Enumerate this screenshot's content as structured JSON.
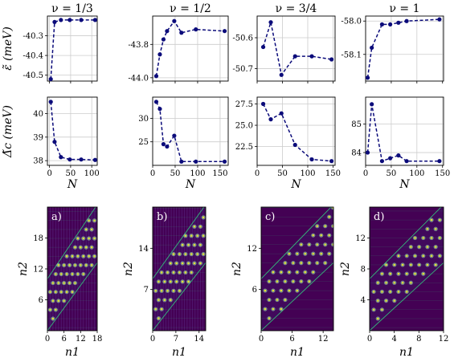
{
  "colors": {
    "line": "#0b0b7a",
    "grid": "#cccccc",
    "heat_bg": "#440154",
    "heat_line": "#35b779",
    "heat_spot": "#a0f0b0",
    "heat_spot_core": "#fde725"
  },
  "chart_data": [
    {
      "type": "line",
      "title": "ν = 1/3",
      "ylabel": "ε̃ (meV)",
      "xlabel": "",
      "x": [
        3,
        12,
        27,
        48,
        75,
        108
      ],
      "y": [
        -40.52,
        -40.23,
        -40.22,
        -40.22,
        -40.22,
        -40.22
      ],
      "xlim": [
        -5,
        113
      ],
      "ylim": [
        -40.53,
        -40.2
      ],
      "xticks": [
        0,
        50,
        100
      ],
      "xticklabels": [
        "",
        "",
        ""
      ],
      "yticks": [
        -40.5,
        -40.4,
        -40.3
      ],
      "yticklabels": [
        "-40.5",
        "-40.4",
        "-40.3"
      ],
      "grid": true
    },
    {
      "type": "line",
      "title": "ν = 1/2",
      "ylabel": "",
      "xlabel": "",
      "x": [
        8,
        16,
        24,
        32,
        48,
        64,
        96,
        160
      ],
      "y": [
        -43.99,
        -43.86,
        -43.77,
        -43.72,
        -43.66,
        -43.73,
        -43.71,
        -43.72
      ],
      "xlim": [
        0,
        168
      ],
      "ylim": [
        -44.02,
        -43.63
      ],
      "xticks": [
        0,
        50,
        100,
        150
      ],
      "xticklabels": [
        "",
        "",
        "",
        ""
      ],
      "yticks": [
        -44.0,
        -43.8
      ],
      "yticklabels": [
        "-44.0",
        "-43.8"
      ],
      "grid": true
    },
    {
      "type": "line",
      "title": "ν = 3/4",
      "ylabel": "",
      "xlabel": "",
      "x": [
        12,
        27,
        48,
        75,
        108,
        147
      ],
      "y": [
        -50.63,
        -50.55,
        -50.72,
        -50.66,
        -50.66,
        -50.67
      ],
      "xlim": [
        0,
        154
      ],
      "ylim": [
        -50.74,
        -50.53
      ],
      "xticks": [
        0,
        50,
        100,
        150
      ],
      "xticklabels": [
        "",
        "",
        "",
        ""
      ],
      "yticks": [
        -50.6,
        -50.7
      ],
      "yticklabels": [
        "-50.6",
        "-50.7"
      ],
      "grid": true
    },
    {
      "type": "line",
      "title": "ν = 1",
      "ylabel": "",
      "xlabel": "",
      "x": [
        4,
        12,
        32,
        48,
        64,
        80,
        144
      ],
      "y": [
        -58.17,
        -58.08,
        -58.01,
        -58.01,
        -58.005,
        -58.0,
        -57.995
      ],
      "xlim": [
        0,
        152
      ],
      "ylim": [
        -58.18,
        -57.985
      ],
      "xticks": [
        0,
        50,
        100,
        150
      ],
      "xticklabels": [
        "",
        "",
        "",
        ""
      ],
      "yticks": [
        -58.0,
        -58.1
      ],
      "yticklabels": [
        "-58.0",
        "-58.1"
      ],
      "grid": true
    },
    {
      "type": "line",
      "title": "",
      "ylabel": "Δ̃c (meV)",
      "xlabel": "N",
      "x": [
        3,
        12,
        27,
        48,
        75,
        108
      ],
      "y": [
        40.5,
        38.8,
        38.15,
        38.05,
        38.05,
        38.03
      ],
      "xlim": [
        -5,
        113
      ],
      "ylim": [
        37.8,
        40.7
      ],
      "xticks": [
        0,
        50,
        100
      ],
      "xticklabels": [
        "0",
        "50",
        "100"
      ],
      "yticks": [
        38,
        39,
        40
      ],
      "yticklabels": [
        "38",
        "39",
        "40"
      ],
      "grid": true
    },
    {
      "type": "line",
      "title": "",
      "ylabel": "",
      "xlabel": "N",
      "x": [
        8,
        16,
        24,
        32,
        48,
        64,
        96,
        160
      ],
      "y": [
        33.5,
        32.0,
        24.5,
        24.0,
        26.3,
        20.8,
        20.8,
        20.8
      ],
      "xlim": [
        0,
        168
      ],
      "ylim": [
        20.0,
        34.5
      ],
      "xticks": [
        0,
        50,
        100,
        150
      ],
      "xticklabels": [
        "0",
        "50",
        "100",
        "150"
      ],
      "yticks": [
        25,
        30
      ],
      "yticklabels": [
        "25",
        "30"
      ],
      "grid": true
    },
    {
      "type": "line",
      "title": "",
      "ylabel": "",
      "xlabel": "N",
      "x": [
        12,
        27,
        48,
        75,
        108,
        147
      ],
      "y": [
        27.5,
        25.7,
        26.4,
        22.7,
        21.0,
        20.8
      ],
      "xlim": [
        0,
        154
      ],
      "ylim": [
        20.3,
        28.3
      ],
      "xticks": [
        0,
        50,
        100,
        150
      ],
      "xticklabels": [
        "0",
        "50",
        "100",
        "150"
      ],
      "yticks": [
        22.5,
        25.0,
        27.5
      ],
      "yticklabels": [
        "22.5",
        "25.0",
        "27.5"
      ],
      "grid": true
    },
    {
      "type": "line",
      "title": "",
      "ylabel": "",
      "xlabel": "N",
      "x": [
        4,
        12,
        32,
        48,
        64,
        80,
        144
      ],
      "y": [
        84.0,
        85.7,
        83.7,
        83.8,
        83.9,
        83.7,
        83.7
      ],
      "xlim": [
        0,
        152
      ],
      "ylim": [
        83.55,
        85.95
      ],
      "xticks": [
        0,
        50,
        100,
        150
      ],
      "xticklabels": [
        "0",
        "50",
        "100",
        "150"
      ],
      "yticks": [
        84,
        85
      ],
      "yticklabels": [
        "84",
        "85"
      ],
      "grid": true
    },
    {
      "type": "heatmap",
      "panel_label": "a)",
      "xlabel": "n1",
      "ylabel": "n2",
      "xlim": [
        0,
        18
      ],
      "ylim": [
        0,
        24
      ],
      "xticks": [
        0,
        6,
        12,
        18
      ],
      "xticklabels": [
        "0",
        "6",
        "12",
        "18"
      ],
      "yticks": [
        6,
        12,
        18
      ],
      "yticklabels": [
        "6",
        "12",
        "18"
      ],
      "lattice": {
        "period": 2,
        "cols": 9,
        "rows": 9,
        "shear": 0.5,
        "origin_y": 0
      },
      "stripe_step": 1
    },
    {
      "type": "heatmap",
      "panel_label": "b)",
      "xlabel": "n1",
      "ylabel": "n2",
      "xlim": [
        0,
        16
      ],
      "ylim": [
        0,
        21
      ],
      "xticks": [
        0,
        7,
        14
      ],
      "xticklabels": [
        "0",
        "7",
        "14"
      ],
      "yticks": [
        7,
        14
      ],
      "yticklabels": [
        "7",
        "14"
      ],
      "lattice": {
        "period": 1.8,
        "cols": 9,
        "rows": 9,
        "shear": 0.5,
        "origin_y": 0
      },
      "stripe_step": 0.8
    },
    {
      "type": "heatmap",
      "panel_label": "c)",
      "xlabel": "n1",
      "ylabel": "n2",
      "xlim": [
        0,
        14
      ],
      "ylim": [
        0,
        18
      ],
      "xticks": [
        0,
        6,
        12
      ],
      "xticklabels": [
        "0",
        "6",
        "12"
      ],
      "yticks": [
        6,
        12
      ],
      "yticklabels": [
        "6",
        "12"
      ],
      "lattice": {
        "period": 1.55,
        "cols": 9,
        "rows": 9,
        "shear": 0.5,
        "origin_y": 0
      },
      "stripe_step": 0
    },
    {
      "type": "heatmap",
      "panel_label": "d)",
      "xlabel": "n1",
      "ylabel": "n2",
      "xlim": [
        0,
        12
      ],
      "ylim": [
        0,
        16
      ],
      "xticks": [
        0,
        4,
        8,
        12
      ],
      "xticklabels": [
        "0",
        "4",
        "8",
        "12"
      ],
      "yticks": [
        4,
        8,
        12
      ],
      "yticklabels": [
        "4",
        "8",
        "12"
      ],
      "lattice": {
        "period": 1.34,
        "cols": 9,
        "rows": 9,
        "shear": 0.5,
        "origin_y": 0
      },
      "stripe_step": 0
    }
  ]
}
